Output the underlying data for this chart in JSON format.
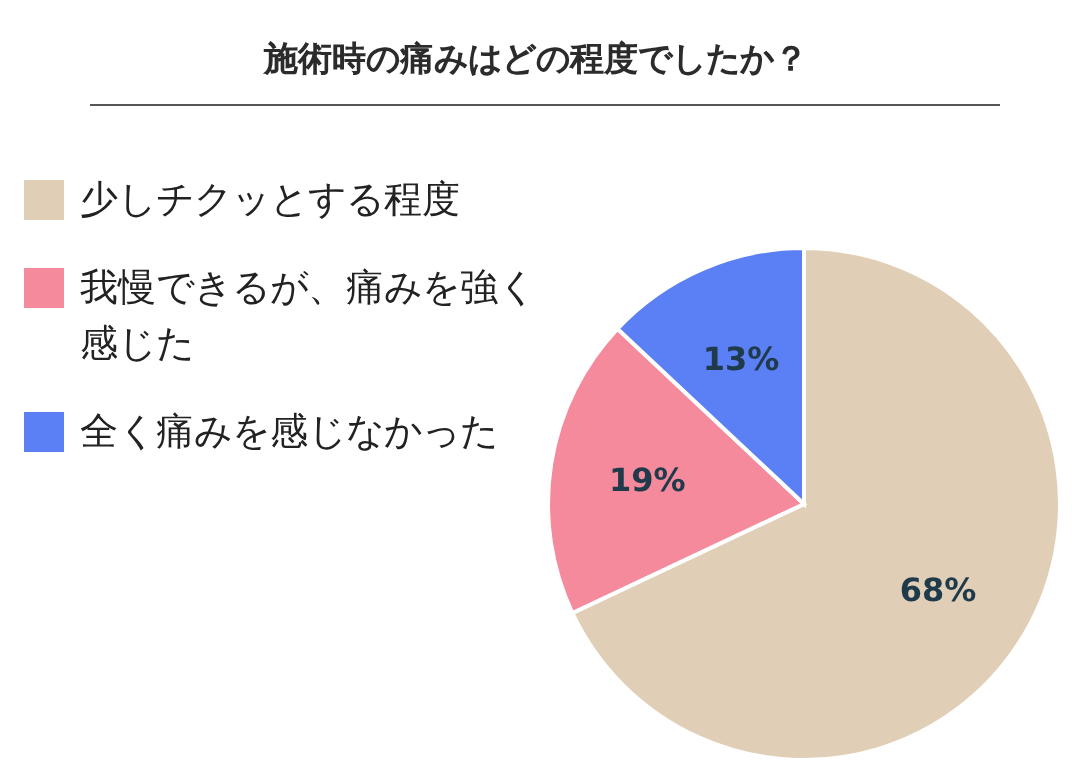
{
  "chart_data": {
    "type": "pie",
    "title": "施術時の痛みはどの程度でしたか？",
    "categories": [
      "少しチクッとする程度",
      "我慢できるが、痛みを強く感じた",
      "全く痛みを感じなかった"
    ],
    "values": [
      68,
      19,
      13
    ],
    "colors": [
      "#e0cfb6",
      "#f48a9b",
      "#5b7ff5"
    ],
    "value_labels": [
      "68%",
      "19%",
      "13%"
    ],
    "legend": "left"
  }
}
